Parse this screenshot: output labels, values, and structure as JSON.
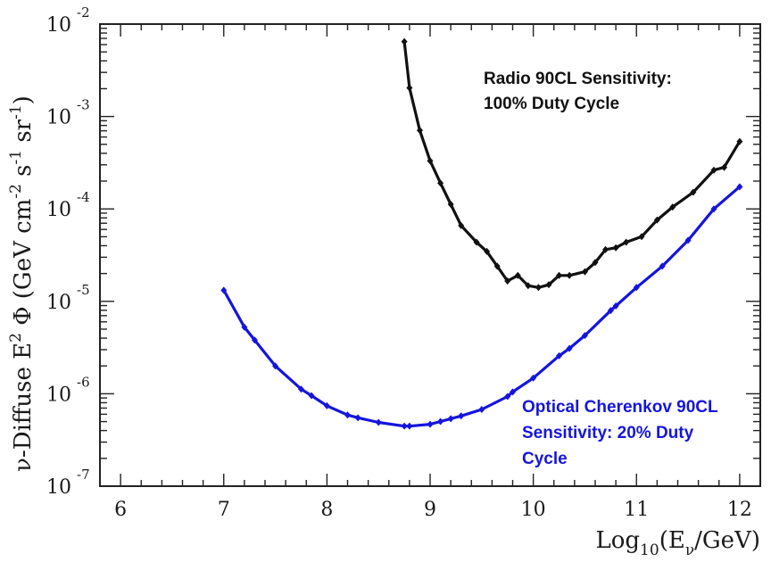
{
  "chart_data": {
    "type": "line",
    "title": "",
    "xlabel": {
      "prefix": "Log",
      "sub": "10",
      "open": "(E",
      "nu_sub": "ν",
      "close": "/GeV)"
    },
    "ylabel": {
      "p1": "ν-Diffuse E",
      "s1": "2",
      "p2": " Φ (GeV cm",
      "s2": "-2",
      "p3": " s",
      "s3": "-1",
      "p4": " sr",
      "s4": "-1",
      "p5": ")"
    },
    "xlim": [
      5.8,
      12.2
    ],
    "ylim_log10": [
      -7,
      -2
    ],
    "x_ticks": [
      6,
      7,
      8,
      9,
      10,
      11,
      12
    ],
    "x_tick_labels": [
      "6",
      "7",
      "8",
      "9",
      "10",
      "11",
      "12"
    ],
    "y_ticks": [
      {
        "exp": -2,
        "base": "10",
        "sup": "-2"
      },
      {
        "exp": -3,
        "base": "10",
        "sup": "-3"
      },
      {
        "exp": -4,
        "base": "10",
        "sup": "-4"
      },
      {
        "exp": -5,
        "base": "10",
        "sup": "-5"
      },
      {
        "exp": -6,
        "base": "10",
        "sup": "-6"
      },
      {
        "exp": -7,
        "base": "10",
        "sup": "-7"
      }
    ],
    "series": [
      {
        "name": "Radio 90CL Sensitivity: 100% Duty Cycle",
        "color": "#111111",
        "x": [
          8.75,
          8.8,
          8.9,
          9.0,
          9.1,
          9.2,
          9.3,
          9.45,
          9.55,
          9.65,
          9.75,
          9.85,
          9.95,
          10.05,
          10.15,
          10.25,
          10.35,
          10.5,
          10.6,
          10.7,
          10.8,
          10.9,
          11.05,
          11.2,
          11.35,
          11.55,
          11.75,
          11.85,
          12.0
        ],
        "log10_y": [
          -2.19,
          -2.69,
          -3.15,
          -3.48,
          -3.72,
          -3.95,
          -4.18,
          -4.36,
          -4.46,
          -4.62,
          -4.78,
          -4.72,
          -4.83,
          -4.85,
          -4.82,
          -4.72,
          -4.72,
          -4.68,
          -4.58,
          -4.44,
          -4.42,
          -4.36,
          -4.3,
          -4.12,
          -3.98,
          -3.82,
          -3.58,
          -3.55,
          -3.27
        ]
      },
      {
        "name": "Optical Cherenkov 90CL Sensitivity: 20% Duty Cycle",
        "color": "#1515dd",
        "x": [
          7.0,
          7.2,
          7.3,
          7.5,
          7.75,
          7.85,
          8.0,
          8.2,
          8.3,
          8.5,
          8.75,
          8.8,
          9.0,
          9.1,
          9.2,
          9.3,
          9.5,
          9.75,
          9.8,
          10.0,
          10.25,
          10.35,
          10.5,
          10.75,
          10.8,
          11.0,
          11.25,
          11.5,
          11.75,
          12.0
        ],
        "log10_y": [
          -4.88,
          -5.28,
          -5.42,
          -5.7,
          -5.95,
          -6.02,
          -6.13,
          -6.23,
          -6.26,
          -6.31,
          -6.35,
          -6.35,
          -6.33,
          -6.3,
          -6.27,
          -6.24,
          -6.17,
          -6.03,
          -5.98,
          -5.83,
          -5.59,
          -5.51,
          -5.37,
          -5.1,
          -5.05,
          -4.85,
          -4.62,
          -4.34,
          -4.0,
          -3.76
        ]
      }
    ],
    "annotations": [
      {
        "text_lines": [
          "Radio 90CL Sensitivity:",
          "100% Duty Cycle"
        ],
        "color": "#111111"
      },
      {
        "text_lines": [
          "Optical Cherenkov 90CL",
          "Sensitivity: 20% Duty",
          "Cycle"
        ],
        "color": "#1515dd"
      }
    ]
  }
}
